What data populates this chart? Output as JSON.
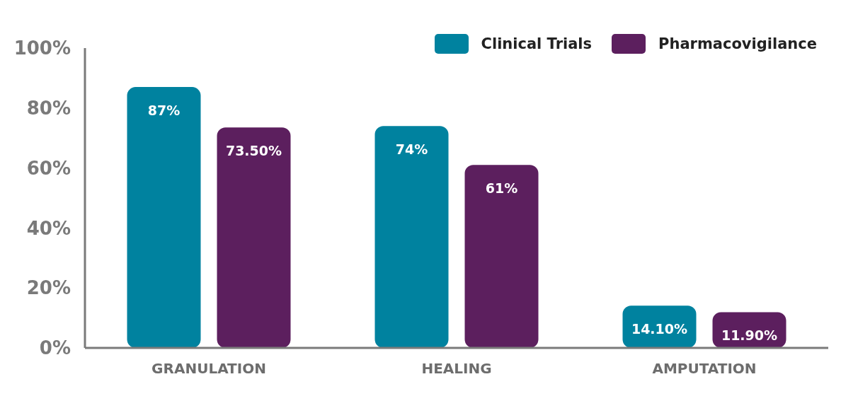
{
  "chart_data": {
    "type": "bar",
    "categories": [
      "GRANULATION",
      "HEALING",
      "AMPUTATION"
    ],
    "series": [
      {
        "name": "Clinical Trials",
        "color": "#00829f",
        "values": [
          87,
          74,
          14.1
        ],
        "value_labels": [
          "87%",
          "74%",
          "14.10%"
        ]
      },
      {
        "name": "Pharmacovigilance",
        "color": "#5c1f5e",
        "values": [
          73.5,
          61,
          11.9
        ],
        "value_labels": [
          "73.50%",
          "61%",
          "11.90%"
        ]
      }
    ],
    "ylim": [
      0,
      100
    ],
    "yticks": [
      {
        "value": 0,
        "label": "0%"
      },
      {
        "value": 20,
        "label": "20%"
      },
      {
        "value": 40,
        "label": "40%"
      },
      {
        "value": 60,
        "label": "60%"
      },
      {
        "value": 80,
        "label": "80%"
      },
      {
        "value": 100,
        "label": "100%"
      }
    ],
    "grid": false,
    "legend": "top right"
  }
}
